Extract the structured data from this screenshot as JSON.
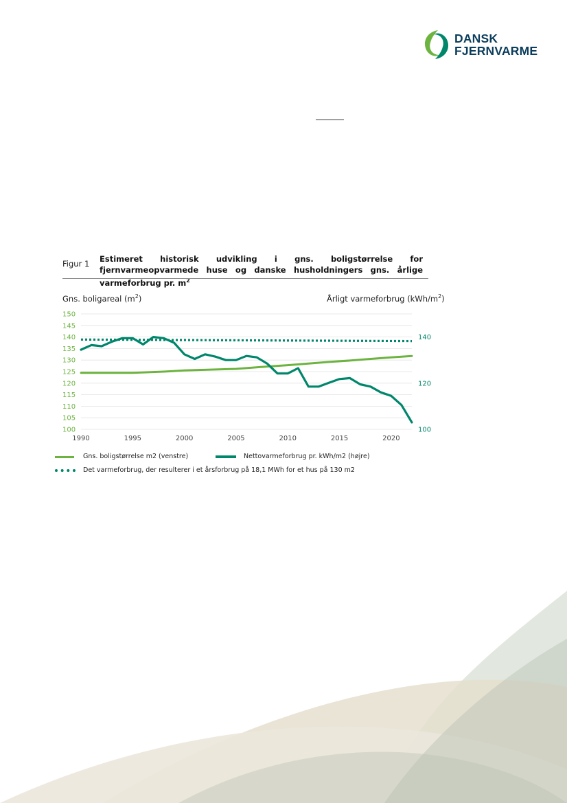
{
  "logo": {
    "line1": "DANSK",
    "line2": "FJERNVARME"
  },
  "figure": {
    "label": "Figur 1",
    "title": "Estimeret historisk udvikling i gns. boligstørrelse for fjernvarmeopvarmede huse og danske husholdningers gns. årlige varmeforbrug pr. m",
    "title_sup": "2"
  },
  "colors": {
    "light_green": "#6cb33f",
    "teal": "#00866b",
    "logo_navy": "#0b3d5c"
  },
  "chart_data": {
    "type": "line",
    "ylabel_left": "Gns. boligareal (m",
    "ylabel_left_sup": "2",
    "ylabel_left_end": ")",
    "ylabel_right": "Årligt varmeforbrug (kWh/m",
    "ylabel_right_sup": "2",
    "ylabel_right_end": ")",
    "xlim": [
      1990,
      2022
    ],
    "ylim_left": [
      100,
      150
    ],
    "ylim_right": [
      100,
      150
    ],
    "x_ticks": [
      "1990",
      "1995",
      "2000",
      "2005",
      "2010",
      "2015",
      "2020"
    ],
    "y_ticks_left": [
      "100",
      "105",
      "110",
      "115",
      "120",
      "125",
      "130",
      "135",
      "140",
      "145",
      "150"
    ],
    "y_ticks_right": [
      "100",
      "120",
      "140"
    ],
    "grid": true,
    "legend_position": "bottom",
    "series": [
      {
        "name": "Gns. boligstørrelse m2 (venstre)",
        "axis": "left",
        "style": "solid-thin",
        "x": [
          1990,
          1995,
          1998,
          2000,
          2005,
          2008,
          2010,
          2012,
          2014,
          2016,
          2018,
          2020,
          2022
        ],
        "y": [
          124.5,
          124.5,
          125,
          125.5,
          126.2,
          127.2,
          127.8,
          128.5,
          129.2,
          129.8,
          130.5,
          131.2,
          131.8
        ]
      },
      {
        "name": "Nettovarmeforbrug pr. kWh/m2 (højre)",
        "axis": "right",
        "style": "solid-thick",
        "x": [
          1990,
          1991,
          1992,
          1993,
          1994,
          1995,
          1996,
          1997,
          1998,
          1999,
          2000,
          2001,
          2002,
          2003,
          2004,
          2005,
          2006,
          2007,
          2008,
          2009,
          2010,
          2011,
          2012,
          2013,
          2014,
          2015,
          2016,
          2017,
          2018,
          2019,
          2020,
          2021,
          2022
        ],
        "y": [
          134.5,
          136.5,
          136,
          138,
          139.5,
          139.5,
          136.8,
          140,
          139.5,
          137.5,
          132.5,
          130.5,
          132.5,
          131.5,
          130,
          130,
          131.8,
          131.2,
          128.5,
          124.2,
          124.2,
          126.5,
          118.5,
          118.5,
          120.2,
          121.8,
          122.2,
          119.5,
          118.5,
          116,
          114.5,
          110.5,
          103
        ]
      },
      {
        "name": "Det varmeforbrug, der resulterer i et årsforbrug på 18,1 MWh for et hus på 130 m2",
        "axis": "right",
        "style": "dotted",
        "x": [
          1990,
          2022
        ],
        "y": [
          138.9,
          138.2
        ]
      }
    ]
  }
}
